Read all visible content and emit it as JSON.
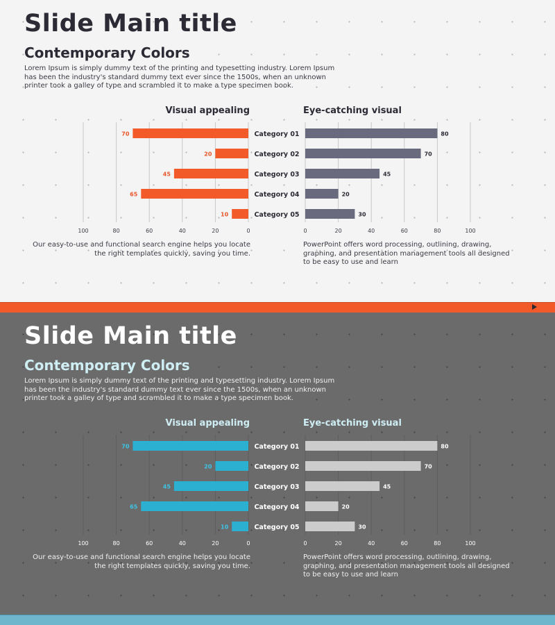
{
  "slide_title": "Slide Main title",
  "subtitle": "Contemporary Colors",
  "body_text": "Lorem Ipsum is simply dummy text of the printing and typesetting industry. Lorem Ipsum has been the industry's standard dummy text ever since the 1500s, when an unknown printer took a galley of type and scrambled it to make a type specimen book.",
  "left_description": "Our easy-to-use and functional search engine helps you locate the right templates quickly, saving you time.",
  "right_description": "PowerPoint offers word processing, outlining, drawing, graphing, and presentation management tools all designed to be easy to use and learn",
  "themes": {
    "light": {
      "background": "#f4f4f4",
      "title_color": "#2c2b35",
      "left_bar_color": "#f25a29",
      "left_label_color": "#e8552a",
      "right_bar_color": "#6a6a7e",
      "right_label_color": "#2c2b35",
      "category_color": "#2c2b35",
      "tick_color": "#3a3a44",
      "grid_color": "#c8c8c8",
      "band_color": "#f25a29"
    },
    "dark": {
      "background": "#6b6b6b",
      "title_color": "#ffffff",
      "left_bar_color": "#2bb0d2",
      "left_label_color": "#3ec4e6",
      "right_bar_color": "#cccccc",
      "right_label_color": "#ffffff",
      "category_color": "#ffffff",
      "tick_color": "#ffffff",
      "grid_color": "#5e5e5e",
      "band_color": "#6fb6cc"
    }
  },
  "chart_data": [
    {
      "type": "bar",
      "orientation": "horizontal",
      "direction": "right-to-left",
      "title": "Visual appealing",
      "categories": [
        "Category 01",
        "Category 02",
        "Category 03",
        "Category 04",
        "Category 05"
      ],
      "values": [
        70,
        20,
        45,
        65,
        10
      ],
      "xlim": [
        0,
        100
      ],
      "ticks": [
        100,
        80,
        60,
        40,
        20,
        0
      ]
    },
    {
      "type": "bar",
      "orientation": "horizontal",
      "direction": "left-to-right",
      "title": "Eye-catching visual",
      "categories": [
        "Category 01",
        "Category 02",
        "Category 03",
        "Category 04",
        "Category 05"
      ],
      "values": [
        80,
        70,
        45,
        20,
        30
      ],
      "xlim": [
        0,
        100
      ],
      "ticks": [
        0,
        20,
        40,
        60,
        80,
        100
      ]
    }
  ]
}
